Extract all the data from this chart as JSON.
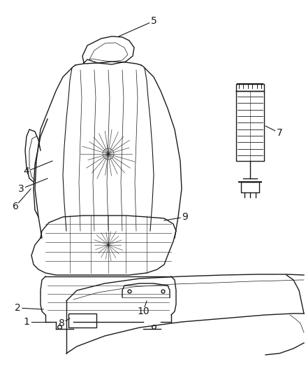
{
  "bg_color": "#ffffff",
  "line_color": "#1a1a1a",
  "label_color": "#1a1a1a",
  "fig_width": 4.38,
  "fig_height": 5.33,
  "dpi": 100
}
